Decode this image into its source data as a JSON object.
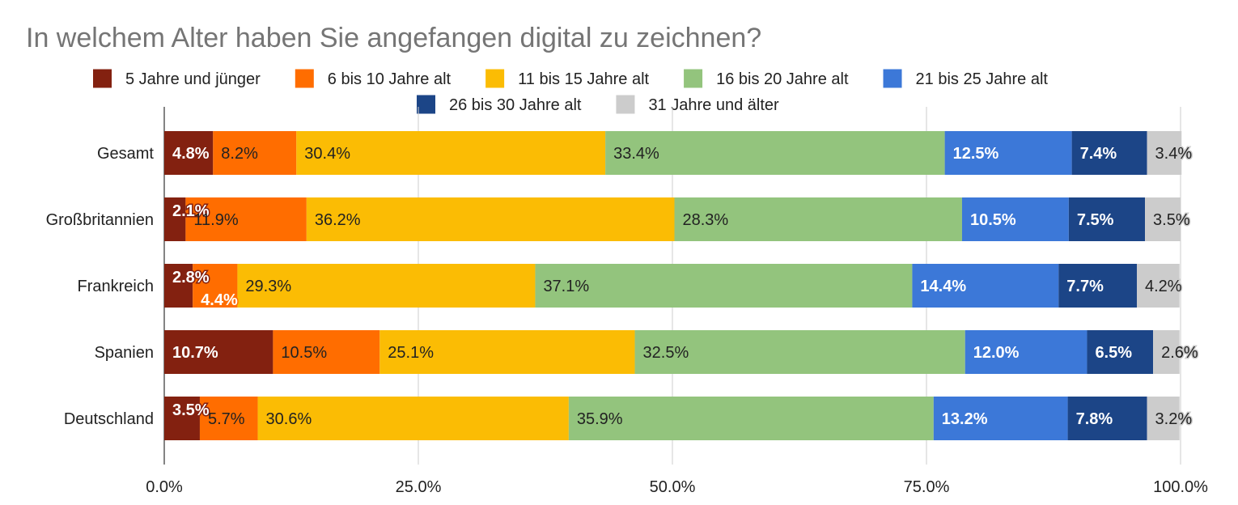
{
  "chart_data": {
    "type": "bar",
    "orientation": "horizontal",
    "stacked": true,
    "title": "In welchem Alter haben Sie angefangen digital zu zeichnen?",
    "xlabel": "",
    "ylabel": "",
    "xlim": [
      0,
      100
    ],
    "x_ticks": [
      "0.0%",
      "25.0%",
      "50.0%",
      "75.0%",
      "100.0%"
    ],
    "grid": true,
    "legend_position": "top",
    "categories": [
      "Gesamt",
      "Großbritannien",
      "Frankreich",
      "Spanien",
      "Deutschland"
    ],
    "series": [
      {
        "name": "5 Jahre und jünger",
        "color": "#832110",
        "values": [
          4.8,
          2.1,
          2.8,
          10.7,
          3.5
        ],
        "labels": [
          "4.8%",
          "2.1%",
          "2.8%",
          "10.7%",
          "3.5%"
        ]
      },
      {
        "name": "6 bis 10 Jahre alt",
        "color": "#ff6d00",
        "values": [
          8.2,
          11.9,
          4.4,
          10.5,
          5.7
        ],
        "labels": [
          "8.2%",
          "11.9%",
          "4.4%",
          "10.5%",
          "5.7%"
        ]
      },
      {
        "name": "11 bis 15 Jahre alt",
        "color": "#fbbc04",
        "values": [
          30.4,
          36.2,
          29.3,
          25.1,
          30.6
        ],
        "labels": [
          "30.4%",
          "36.2%",
          "29.3%",
          "25.1%",
          "30.6%"
        ]
      },
      {
        "name": "16 bis 20 Jahre alt",
        "color": "#93c47d",
        "values": [
          33.4,
          28.3,
          37.1,
          32.5,
          35.9
        ],
        "labels": [
          "33.4%",
          "28.3%",
          "37.1%",
          "32.5%",
          "35.9%"
        ]
      },
      {
        "name": "21 bis 25 Jahre alt",
        "color": "#3c78d8",
        "values": [
          12.5,
          10.5,
          14.4,
          12.0,
          13.2
        ],
        "labels": [
          "12.5%",
          "10.5%",
          "14.4%",
          "12.0%",
          "13.2%"
        ]
      },
      {
        "name": "26 bis 30 Jahre alt",
        "color": "#1c4587",
        "values": [
          7.4,
          7.5,
          7.7,
          6.5,
          7.8
        ],
        "labels": [
          "7.4%",
          "7.5%",
          "7.7%",
          "6.5%",
          "7.8%"
        ]
      },
      {
        "name": "31 Jahre und älter",
        "color": "#cccccc",
        "values": [
          3.4,
          3.5,
          4.2,
          2.6,
          3.2
        ],
        "labels": [
          "3.4%",
          "3.5%",
          "4.2%",
          "2.6%",
          "3.2%"
        ]
      }
    ]
  }
}
